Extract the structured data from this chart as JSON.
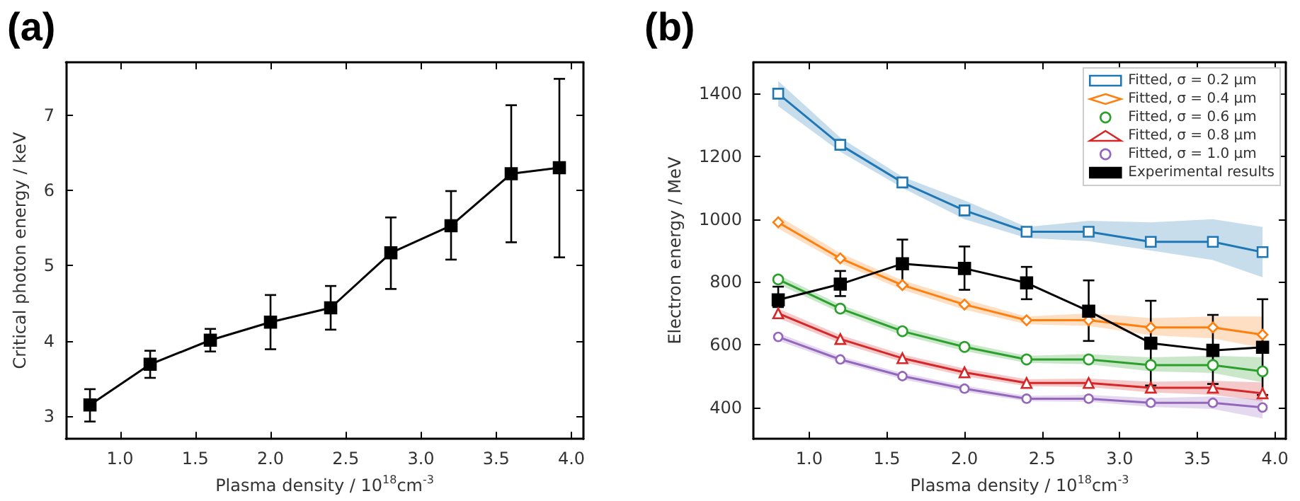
{
  "chart_data": [
    {
      "type": "line",
      "title": "(a)",
      "xlabel": "Plasma density / 10$^{18}$cm$^{-3}$",
      "ylabel": "Critical photon energy / keV",
      "x": [
        0.8,
        1.2,
        1.6,
        2.0,
        2.4,
        2.8,
        3.2,
        3.6,
        3.92
      ],
      "series": [
        {
          "color": "#000000",
          "marker": "square",
          "values": [
            3.15,
            3.69,
            4.01,
            4.25,
            4.44,
            5.17,
            5.53,
            6.22,
            6.3
          ],
          "errors": [
            [
              2.93,
              3.36
            ],
            [
              3.51,
              3.87
            ],
            [
              3.86,
              4.16
            ],
            [
              3.89,
              4.61
            ],
            [
              4.15,
              4.73
            ],
            [
              4.69,
              5.64
            ],
            [
              5.08,
              5.99
            ],
            [
              5.31,
              7.13
            ],
            [
              5.11,
              7.48
            ]
          ]
        }
      ],
      "xlim": [
        0.64,
        4.08
      ],
      "xticks": [
        {
          "value": 1,
          "label": "1.0"
        },
        {
          "value": 1.5,
          "label": "1.5"
        },
        {
          "value": 2,
          "label": "2.0"
        },
        {
          "value": 2.5,
          "label": "2.5"
        },
        {
          "value": 3,
          "label": "3.0"
        },
        {
          "value": 3.5,
          "label": "3.5"
        },
        {
          "value": 4,
          "label": "4.0"
        }
      ],
      "ylim": [
        2.7,
        7.7
      ],
      "yticks": [
        3,
        4,
        5,
        6,
        7
      ],
      "grid": false,
      "legend": false,
      "line_style": "solid"
    },
    {
      "type": "line",
      "title": "(b)",
      "xlabel": "Plasma density / 10$^{18}$cm$^{-3}$",
      "ylabel": "Electron energy / MeV",
      "x": [
        0.8,
        1.2,
        1.6,
        2.0,
        2.4,
        2.8,
        3.2,
        3.6,
        3.92
      ],
      "series": [
        {
          "name": "Fitted, σ = 0.2 μm",
          "color": "#1f77b4",
          "marker": "square",
          "values": [
            1400,
            1237,
            1117,
            1028,
            960,
            960,
            928,
            928,
            895
          ],
          "lower": [
            1360,
            1215,
            1100,
            1000,
            940,
            930,
            900,
            870,
            815
          ],
          "upper": [
            1440,
            1260,
            1135,
            1060,
            975,
            995,
            990,
            1000,
            975
          ]
        },
        {
          "name": "Fitted, σ = 0.4 μm",
          "color": "#ff7f0e",
          "marker": "diamond",
          "values": [
            990,
            875,
            790,
            728,
            678,
            678,
            655,
            655,
            632
          ],
          "lower": [
            970,
            860,
            775,
            712,
            665,
            660,
            630,
            620,
            590
          ],
          "upper": [
            1010,
            892,
            805,
            745,
            690,
            700,
            685,
            690,
            690
          ]
        },
        {
          "name": "Fitted, σ = 0.6 μm",
          "color": "#2ca02c",
          "marker": "circle",
          "values": [
            808,
            715,
            643,
            593,
            553,
            553,
            535,
            535,
            515
          ],
          "lower": [
            793,
            702,
            630,
            580,
            542,
            538,
            515,
            510,
            480
          ],
          "upper": [
            823,
            728,
            656,
            606,
            565,
            570,
            560,
            565,
            560
          ]
        },
        {
          "name": "Fitted, σ = 0.8 μm",
          "color": "#d62728",
          "marker": "triangle",
          "values": [
            700,
            618,
            557,
            512,
            478,
            478,
            463,
            463,
            445
          ],
          "lower": [
            685,
            605,
            545,
            500,
            468,
            465,
            448,
            440,
            420
          ],
          "upper": [
            715,
            631,
            569,
            524,
            490,
            492,
            482,
            485,
            480
          ]
        },
        {
          "name": "Fitted, σ = 1.0 μm",
          "color": "#9467bd",
          "marker": "circle",
          "values": [
            625,
            553,
            500,
            460,
            428,
            428,
            415,
            415,
            400
          ],
          "lower": [
            613,
            543,
            490,
            450,
            420,
            418,
            402,
            395,
            365
          ],
          "upper": [
            637,
            563,
            510,
            470,
            437,
            440,
            430,
            435,
            425
          ]
        },
        {
          "name": "Experimental results",
          "color": "#000000",
          "marker": "square",
          "values": [
            743,
            793,
            858,
            843,
            797,
            707,
            605,
            582,
            592
          ],
          "errors": [
            [
              720,
              785
            ],
            [
              755,
              835
            ],
            [
              790,
              935
            ],
            [
              775,
              913
            ],
            [
              745,
              848
            ],
            [
              612,
              805
            ],
            [
              470,
              740
            ],
            [
              475,
              695
            ],
            [
              440,
              745
            ]
          ]
        }
      ],
      "xlim": [
        0.64,
        4.07
      ],
      "xticks": [
        {
          "value": 1,
          "label": "1.0"
        },
        {
          "value": 1.5,
          "label": "1.5"
        },
        {
          "value": 2,
          "label": "2.0"
        },
        {
          "value": 2.5,
          "label": "2.5"
        },
        {
          "value": 3,
          "label": "3.0"
        },
        {
          "value": 3.5,
          "label": "3.5"
        },
        {
          "value": 4,
          "label": "4.0"
        }
      ],
      "ylim": [
        300,
        1500
      ],
      "yticks": [
        400,
        600,
        800,
        1000,
        1200,
        1400
      ],
      "grid": false,
      "legend": "top right",
      "line_style": "solid"
    }
  ]
}
